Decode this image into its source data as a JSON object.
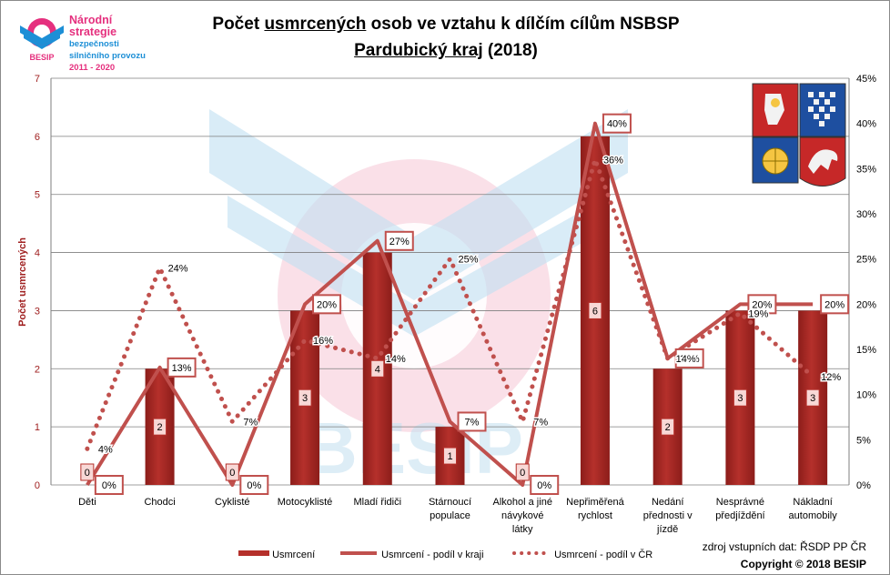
{
  "logo": {
    "line1": "Národní strategie",
    "line2": "bezpečnosti",
    "line3": "silničního provozu",
    "line4": "2011 - 2020",
    "brand": "BESIP"
  },
  "title": {
    "line1_pre": "Počet ",
    "line1_u": "usmrcených",
    "line1_post": " osob ve vztahu k dílčím cílům NSBSP",
    "line2_u": "Pardubický kraj",
    "line2_post": " (2018)"
  },
  "watermark": "BESIP",
  "source": {
    "line1": "zdroj vstupních dat: ŘSDP PP ČR",
    "line2": "Copyright © 2018  BESIP"
  },
  "colors": {
    "bar": "#b5302b",
    "bar_dark": "#8c1d1a",
    "line": "#c0504d",
    "grid": "#7f7f7f",
    "axis_text": "#a02020"
  },
  "chart_data": {
    "type": "bar",
    "title": "Počet usmrcených osob ve vztahu k dílčím cílům NSBSP Pardubický kraj (2018)",
    "ylabel": "Počet usmrcených",
    "ylim": [
      0,
      7
    ],
    "y2lim": [
      0,
      45
    ],
    "yticks": [
      "0",
      "1",
      "2",
      "3",
      "4",
      "5",
      "6",
      "7"
    ],
    "y2ticks": [
      "0%",
      "5%",
      "10%",
      "15%",
      "20%",
      "25%",
      "30%",
      "35%",
      "40%",
      "45%"
    ],
    "categories": [
      [
        "Děti"
      ],
      [
        "Chodci"
      ],
      [
        "Cyklisté"
      ],
      [
        "Motocyklisté"
      ],
      [
        "Mladí řidiči"
      ],
      [
        "Stárnoucí",
        "populace"
      ],
      [
        "Alkohol a jiné",
        "návykové",
        "látky"
      ],
      [
        "Nepřiměřená",
        "rychlost"
      ],
      [
        "Nedání",
        "přednosti v",
        "jízdě"
      ],
      [
        "Nesprávné",
        "předjíždění"
      ],
      [
        "Nákladní",
        "automobily"
      ]
    ],
    "series": [
      {
        "name": "Usmrcení",
        "type": "bar",
        "values": [
          0,
          2,
          0,
          3,
          4,
          1,
          0,
          6,
          2,
          3,
          3
        ],
        "labels": [
          "0",
          "2",
          "0",
          "3",
          "4",
          "1",
          "0",
          "6",
          "2",
          "3",
          "3"
        ]
      },
      {
        "name": "Usmrcení - podíl v kraji",
        "type": "line",
        "values": [
          0,
          13,
          0,
          20,
          27,
          7,
          0,
          40,
          14,
          20,
          20
        ],
        "labels": [
          "0%",
          "13%",
          "0%",
          "20%",
          "27%",
          "7%",
          "0%",
          "40%",
          "14%",
          "20%",
          "20%"
        ]
      },
      {
        "name": "Usmrcení - podíl v ČR",
        "type": "line-dotted",
        "values": [
          4,
          24,
          7,
          16,
          14,
          25,
          7,
          36,
          14,
          19,
          12
        ],
        "labels": [
          "4%",
          "24%",
          "7%",
          "16%",
          "14%",
          "25%",
          "7%",
          "36%",
          "14%",
          "19%",
          "12%"
        ]
      }
    ],
    "grid": true,
    "legend_position": "bottom"
  }
}
